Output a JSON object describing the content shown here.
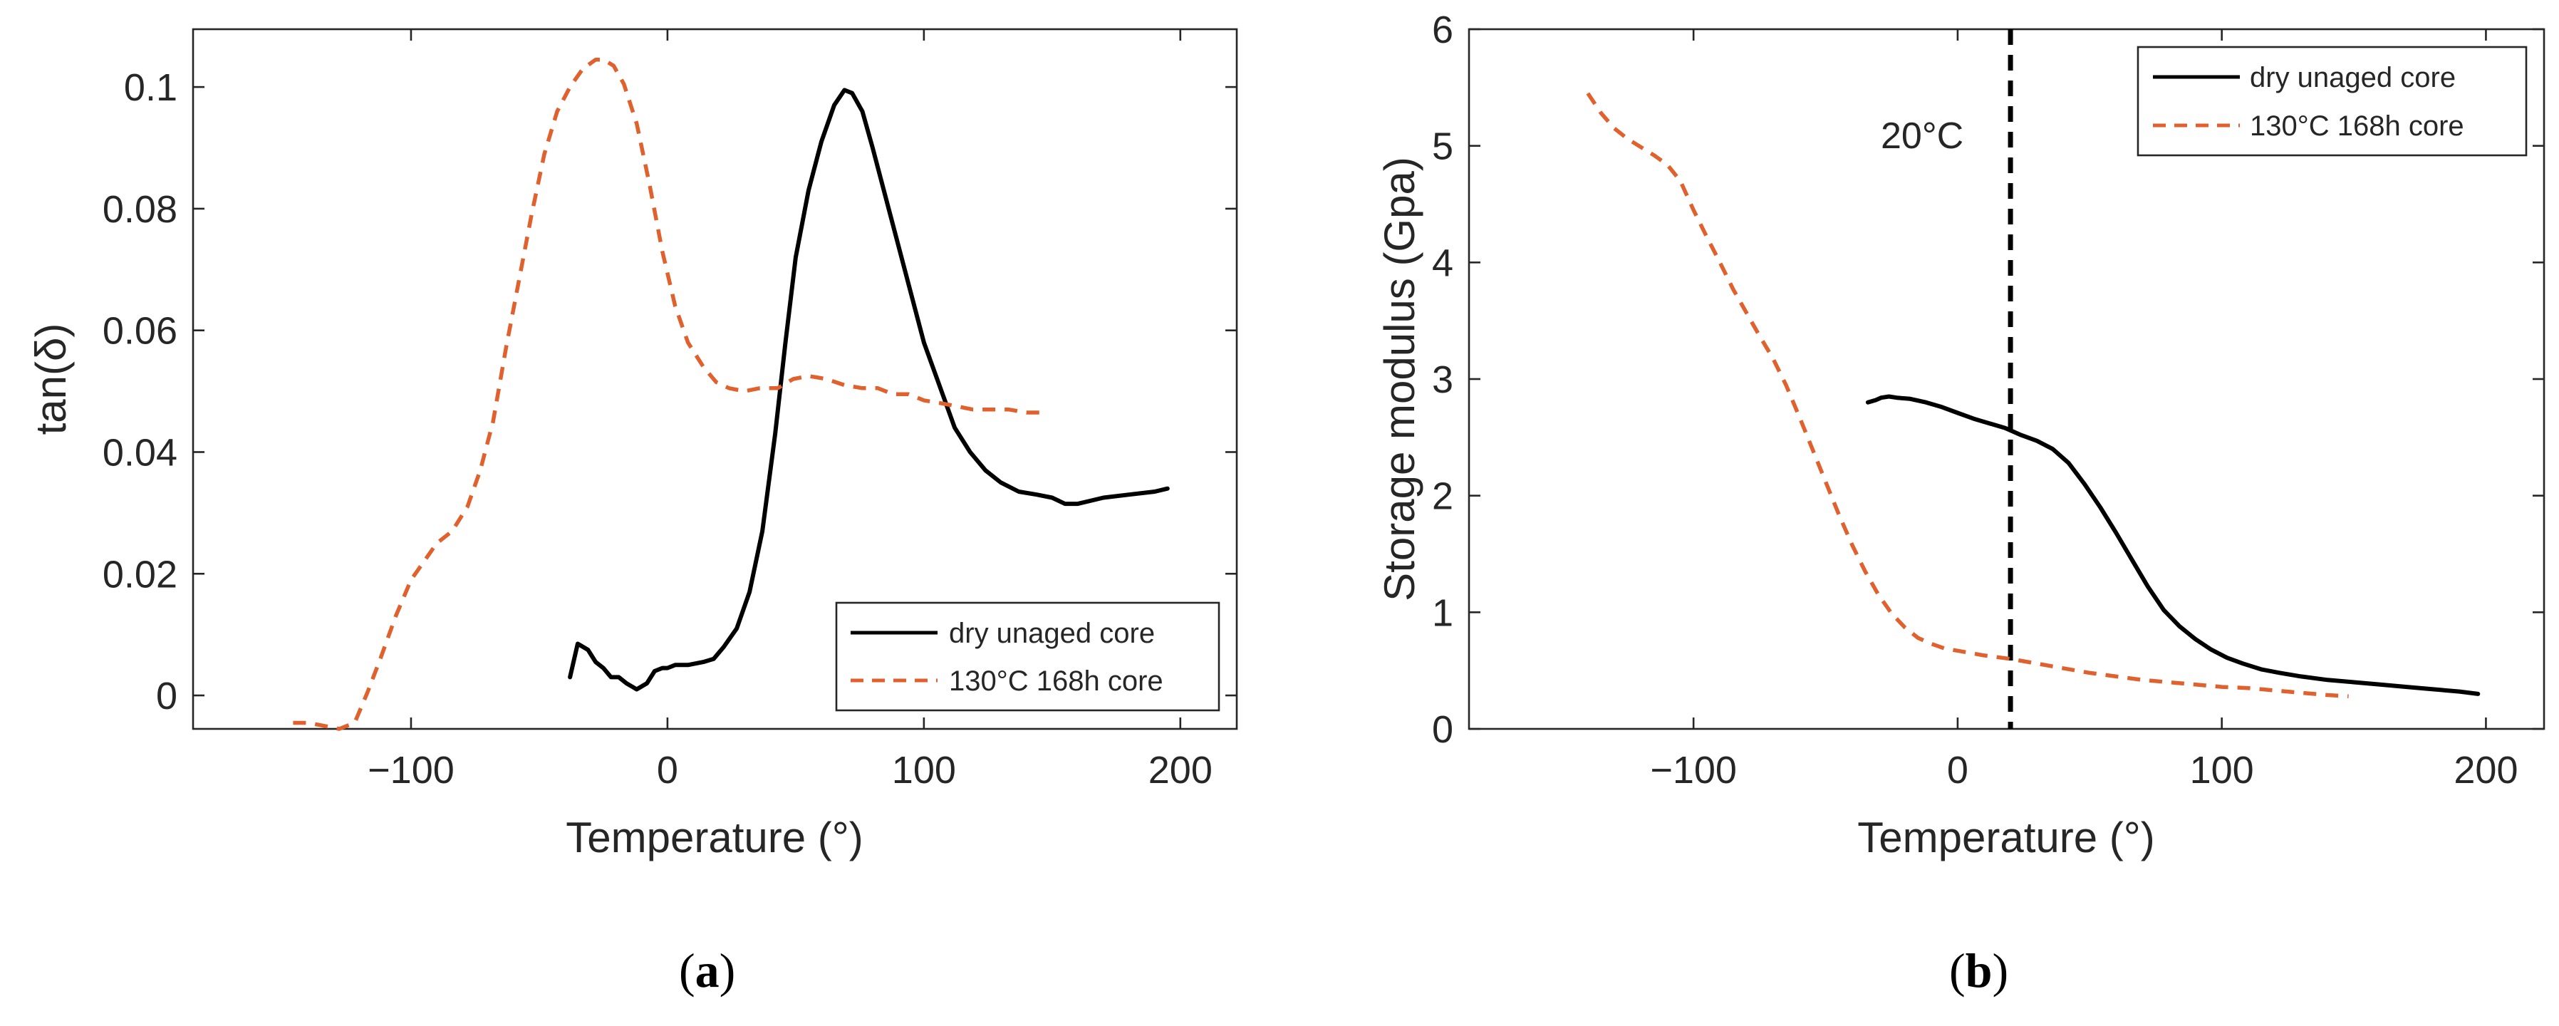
{
  "chart_data": [
    {
      "type": "line",
      "panel_label": "(a)",
      "panel_letter": "a",
      "xlabel": "Temperature (°)",
      "ylabel": "tan(δ)",
      "xlim": [
        -185,
        222
      ],
      "ylim": [
        -0.0055,
        0.1095
      ],
      "xticks": [
        -100,
        0,
        100,
        200
      ],
      "xtick_labels": [
        "−100",
        "0",
        "100",
        "200"
      ],
      "yticks": [
        0,
        0.02,
        0.04,
        0.06,
        0.08,
        0.1
      ],
      "ytick_labels": [
        "0",
        "0.02",
        "0.04",
        "0.06",
        "0.08",
        "0.1"
      ],
      "legend_position": "bottom-right",
      "series": [
        {
          "name": "dry unaged core",
          "color": "#000000",
          "style": "solid",
          "points": [
            [
              -38,
              0.003
            ],
            [
              -35,
              0.0085
            ],
            [
              -31,
              0.0075
            ],
            [
              -28,
              0.0055
            ],
            [
              -25,
              0.0045
            ],
            [
              -22,
              0.003
            ],
            [
              -19,
              0.003
            ],
            [
              -16,
              0.002
            ],
            [
              -12,
              0.001
            ],
            [
              -8,
              0.002
            ],
            [
              -5,
              0.004
            ],
            [
              -2,
              0.0045
            ],
            [
              0,
              0.0045
            ],
            [
              3,
              0.005
            ],
            [
              8,
              0.005
            ],
            [
              14,
              0.0055
            ],
            [
              18,
              0.006
            ],
            [
              22,
              0.008
            ],
            [
              27,
              0.011
            ],
            [
              32,
              0.017
            ],
            [
              37,
              0.027
            ],
            [
              42,
              0.043
            ],
            [
              46,
              0.058
            ],
            [
              50,
              0.072
            ],
            [
              55,
              0.083
            ],
            [
              60,
              0.091
            ],
            [
              65,
              0.097
            ],
            [
              69,
              0.0995
            ],
            [
              72,
              0.099
            ],
            [
              76,
              0.096
            ],
            [
              80,
              0.09
            ],
            [
              85,
              0.082
            ],
            [
              90,
              0.074
            ],
            [
              95,
              0.066
            ],
            [
              100,
              0.058
            ],
            [
              106,
              0.051
            ],
            [
              112,
              0.044
            ],
            [
              118,
              0.04
            ],
            [
              124,
              0.037
            ],
            [
              130,
              0.035
            ],
            [
              137,
              0.0335
            ],
            [
              144,
              0.033
            ],
            [
              150,
              0.0325
            ],
            [
              155,
              0.0315
            ],
            [
              160,
              0.0315
            ],
            [
              170,
              0.0325
            ],
            [
              180,
              0.033
            ],
            [
              190,
              0.0335
            ],
            [
              195,
              0.034
            ]
          ]
        },
        {
          "name": "130°C 168h core",
          "color": "#e0612d",
          "style": "dashed",
          "points": [
            [
              -146,
              -0.0045
            ],
            [
              -140,
              -0.0045
            ],
            [
              -134,
              -0.005
            ],
            [
              -128,
              -0.0055
            ],
            [
              -122,
              -0.0045
            ],
            [
              -117,
              0.0005
            ],
            [
              -112,
              0.006
            ],
            [
              -106,
              0.013
            ],
            [
              -100,
              0.019
            ],
            [
              -95,
              0.022
            ],
            [
              -90,
              0.025
            ],
            [
              -84,
              0.027
            ],
            [
              -78,
              0.031
            ],
            [
              -73,
              0.037
            ],
            [
              -68,
              0.045
            ],
            [
              -63,
              0.057
            ],
            [
              -58,
              0.068
            ],
            [
              -53,
              0.079
            ],
            [
              -48,
              0.089
            ],
            [
              -43,
              0.096
            ],
            [
              -38,
              0.1
            ],
            [
              -33,
              0.103
            ],
            [
              -28,
              0.1045
            ],
            [
              -25,
              0.1045
            ],
            [
              -21,
              0.1035
            ],
            [
              -17,
              0.1005
            ],
            [
              -12,
              0.094
            ],
            [
              -7,
              0.084
            ],
            [
              -2,
              0.073
            ],
            [
              3,
              0.064
            ],
            [
              8,
              0.058
            ],
            [
              14,
              0.054
            ],
            [
              19,
              0.0515
            ],
            [
              24,
              0.0505
            ],
            [
              30,
              0.05
            ],
            [
              36,
              0.0505
            ],
            [
              43,
              0.0505
            ],
            [
              49,
              0.052
            ],
            [
              55,
              0.0525
            ],
            [
              62,
              0.052
            ],
            [
              69,
              0.051
            ],
            [
              76,
              0.0505
            ],
            [
              82,
              0.0505
            ],
            [
              88,
              0.0495
            ],
            [
              94,
              0.0495
            ],
            [
              100,
              0.0485
            ],
            [
              107,
              0.048
            ],
            [
              113,
              0.0475
            ],
            [
              119,
              0.047
            ],
            [
              126,
              0.047
            ],
            [
              133,
              0.047
            ],
            [
              140,
              0.0465
            ],
            [
              145,
              0.0465
            ]
          ]
        }
      ]
    },
    {
      "type": "line",
      "panel_label": "(b)",
      "panel_letter": "b",
      "xlabel": "Temperature (°)",
      "ylabel": "Storage modulus (Gpa)",
      "xlim": [
        -185,
        222
      ],
      "ylim": [
        0,
        6
      ],
      "xticks": [
        -100,
        0,
        100,
        200
      ],
      "xtick_labels": [
        "−100",
        "0",
        "100",
        "200"
      ],
      "yticks": [
        0,
        1,
        2,
        3,
        4,
        5,
        6
      ],
      "ytick_labels": [
        "0",
        "1",
        "2",
        "3",
        "4",
        "5",
        "6"
      ],
      "legend_position": "top-right",
      "vline": {
        "x": 20,
        "label": "20°C",
        "style": "dashed",
        "color": "#000000"
      },
      "series": [
        {
          "name": "dry unaged core",
          "color": "#000000",
          "style": "solid",
          "points": [
            [
              -34,
              2.8
            ],
            [
              -31,
              2.82
            ],
            [
              -29,
              2.84
            ],
            [
              -26,
              2.85
            ],
            [
              -23,
              2.84
            ],
            [
              -18,
              2.83
            ],
            [
              -12,
              2.8
            ],
            [
              -6,
              2.76
            ],
            [
              0,
              2.71
            ],
            [
              6,
              2.66
            ],
            [
              12,
              2.62
            ],
            [
              18,
              2.58
            ],
            [
              24,
              2.52
            ],
            [
              30,
              2.47
            ],
            [
              36,
              2.4
            ],
            [
              42,
              2.28
            ],
            [
              48,
              2.1
            ],
            [
              54,
              1.9
            ],
            [
              60,
              1.68
            ],
            [
              66,
              1.45
            ],
            [
              72,
              1.22
            ],
            [
              78,
              1.02
            ],
            [
              84,
              0.88
            ],
            [
              90,
              0.77
            ],
            [
              96,
              0.68
            ],
            [
              102,
              0.61
            ],
            [
              108,
              0.56
            ],
            [
              115,
              0.51
            ],
            [
              122,
              0.48
            ],
            [
              130,
              0.45
            ],
            [
              140,
              0.42
            ],
            [
              150,
              0.4
            ],
            [
              160,
              0.38
            ],
            [
              170,
              0.36
            ],
            [
              180,
              0.34
            ],
            [
              190,
              0.32
            ],
            [
              197,
              0.3
            ]
          ]
        },
        {
          "name": "130°C 168h core",
          "color": "#e0612d",
          "style": "dashed",
          "points": [
            [
              -140,
              5.45
            ],
            [
              -135,
              5.28
            ],
            [
              -130,
              5.15
            ],
            [
              -125,
              5.06
            ],
            [
              -120,
              4.99
            ],
            [
              -115,
              4.92
            ],
            [
              -110,
              4.84
            ],
            [
              -105,
              4.7
            ],
            [
              -100,
              4.45
            ],
            [
              -95,
              4.22
            ],
            [
              -90,
              4.0
            ],
            [
              -85,
              3.77
            ],
            [
              -80,
              3.57
            ],
            [
              -75,
              3.37
            ],
            [
              -70,
              3.18
            ],
            [
              -65,
              2.95
            ],
            [
              -60,
              2.68
            ],
            [
              -55,
              2.4
            ],
            [
              -50,
              2.12
            ],
            [
              -45,
              1.84
            ],
            [
              -40,
              1.58
            ],
            [
              -35,
              1.35
            ],
            [
              -30,
              1.15
            ],
            [
              -25,
              0.99
            ],
            [
              -20,
              0.87
            ],
            [
              -15,
              0.78
            ],
            [
              -10,
              0.73
            ],
            [
              -5,
              0.69
            ],
            [
              0,
              0.67
            ],
            [
              5,
              0.65
            ],
            [
              10,
              0.63
            ],
            [
              15,
              0.615
            ],
            [
              20,
              0.6
            ],
            [
              30,
              0.56
            ],
            [
              40,
              0.52
            ],
            [
              50,
              0.48
            ],
            [
              60,
              0.45
            ],
            [
              70,
              0.42
            ],
            [
              80,
              0.4
            ],
            [
              90,
              0.38
            ],
            [
              100,
              0.36
            ],
            [
              110,
              0.35
            ],
            [
              120,
              0.33
            ],
            [
              130,
              0.31
            ],
            [
              140,
              0.29
            ],
            [
              148,
              0.28
            ]
          ]
        }
      ]
    }
  ]
}
